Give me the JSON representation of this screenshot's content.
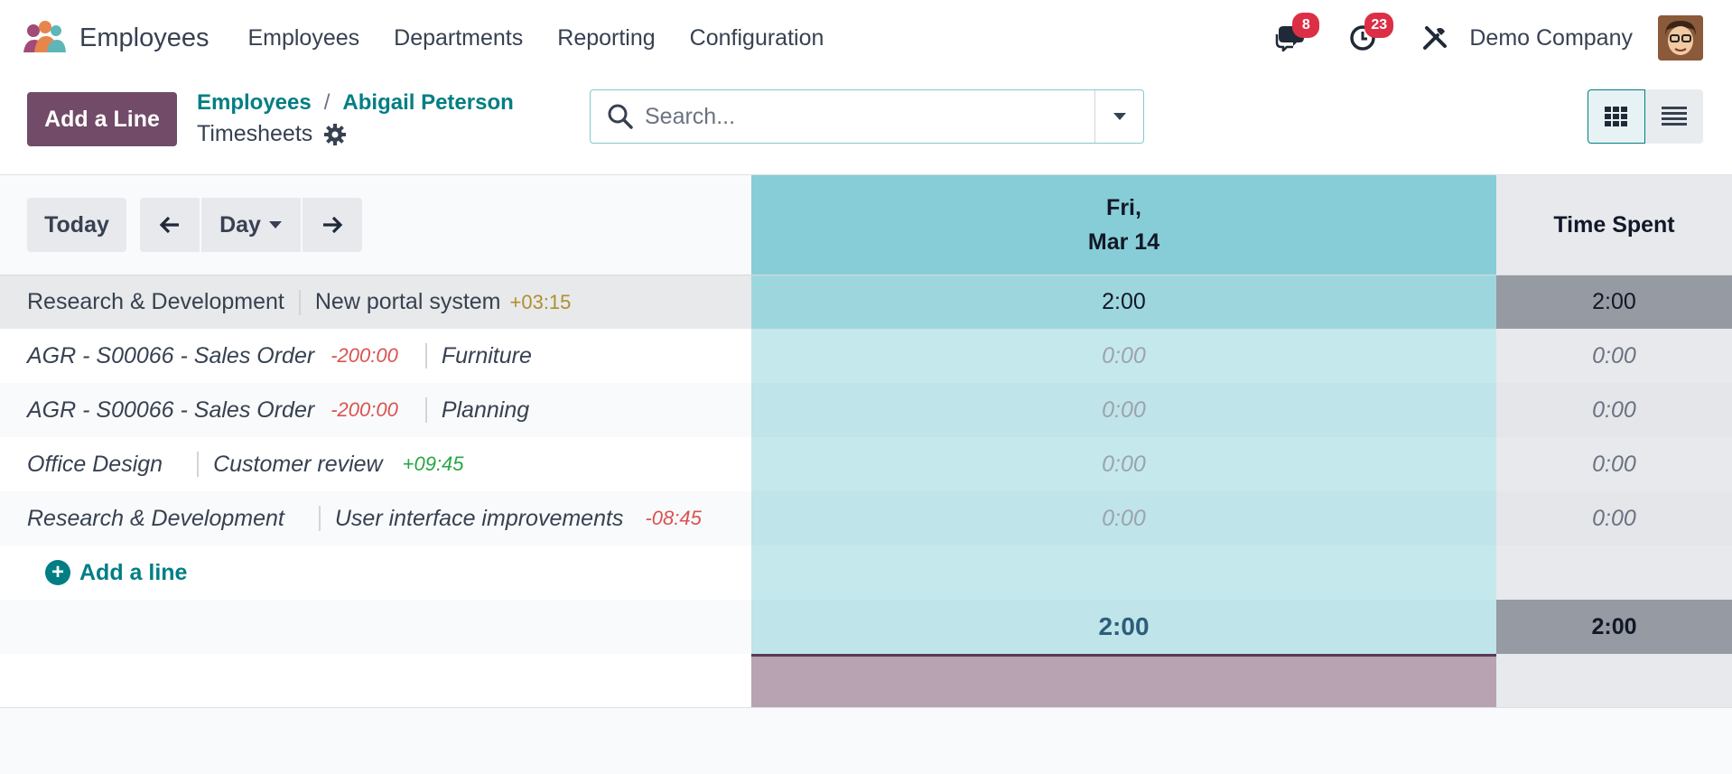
{
  "app": {
    "name": "Employees",
    "menu": [
      "Employees",
      "Departments",
      "Reporting",
      "Configuration"
    ],
    "messages_count": "8",
    "activities_count": "23",
    "company": "Demo Company"
  },
  "control": {
    "add_button": "Add a Line",
    "breadcrumb": [
      "Employees",
      "Abigail Peterson"
    ],
    "breadcrumb_sep": "/",
    "subtitle": "Timesheets",
    "search_placeholder": "Search..."
  },
  "grid": {
    "today_label": "Today",
    "range_label": "Day",
    "column_day_weekday": "Fri,",
    "column_day_date": "Mar 14",
    "column_total": "Time Spent",
    "section": {
      "project": "Research & Development",
      "task": "New portal system",
      "delta": "+03:15",
      "day_value": "2:00",
      "total_value": "2:00"
    },
    "rows": [
      {
        "project": "AGR - S00066 - Sales Order",
        "project_delta": "-200:00",
        "task": "Furniture",
        "task_delta": "",
        "day_value": "0:00",
        "total_value": "0:00"
      },
      {
        "project": "AGR - S00066 - Sales Order",
        "project_delta": "-200:00",
        "task": "Planning",
        "task_delta": "",
        "day_value": "0:00",
        "total_value": "0:00"
      },
      {
        "project": "Office Design",
        "project_delta": "",
        "task": "Customer review",
        "task_delta": "+09:45",
        "day_value": "0:00",
        "total_value": "0:00"
      },
      {
        "project": "Research & Development",
        "project_delta": "",
        "task": "User interface improvements",
        "task_delta": "-08:45",
        "day_value": "0:00",
        "total_value": "0:00"
      }
    ],
    "add_line_label": "Add a line",
    "footer_day_total": "2:00",
    "footer_grand_total": "2:00"
  },
  "colors": {
    "brand": "#714b67",
    "link": "#017e84",
    "day_header": "#87cdd7",
    "day_cell": "#c5e8ec",
    "total_header_dark": "#959aa3",
    "positive": "#28a745",
    "negative": "#d9534f",
    "warning": "#b08f32"
  }
}
